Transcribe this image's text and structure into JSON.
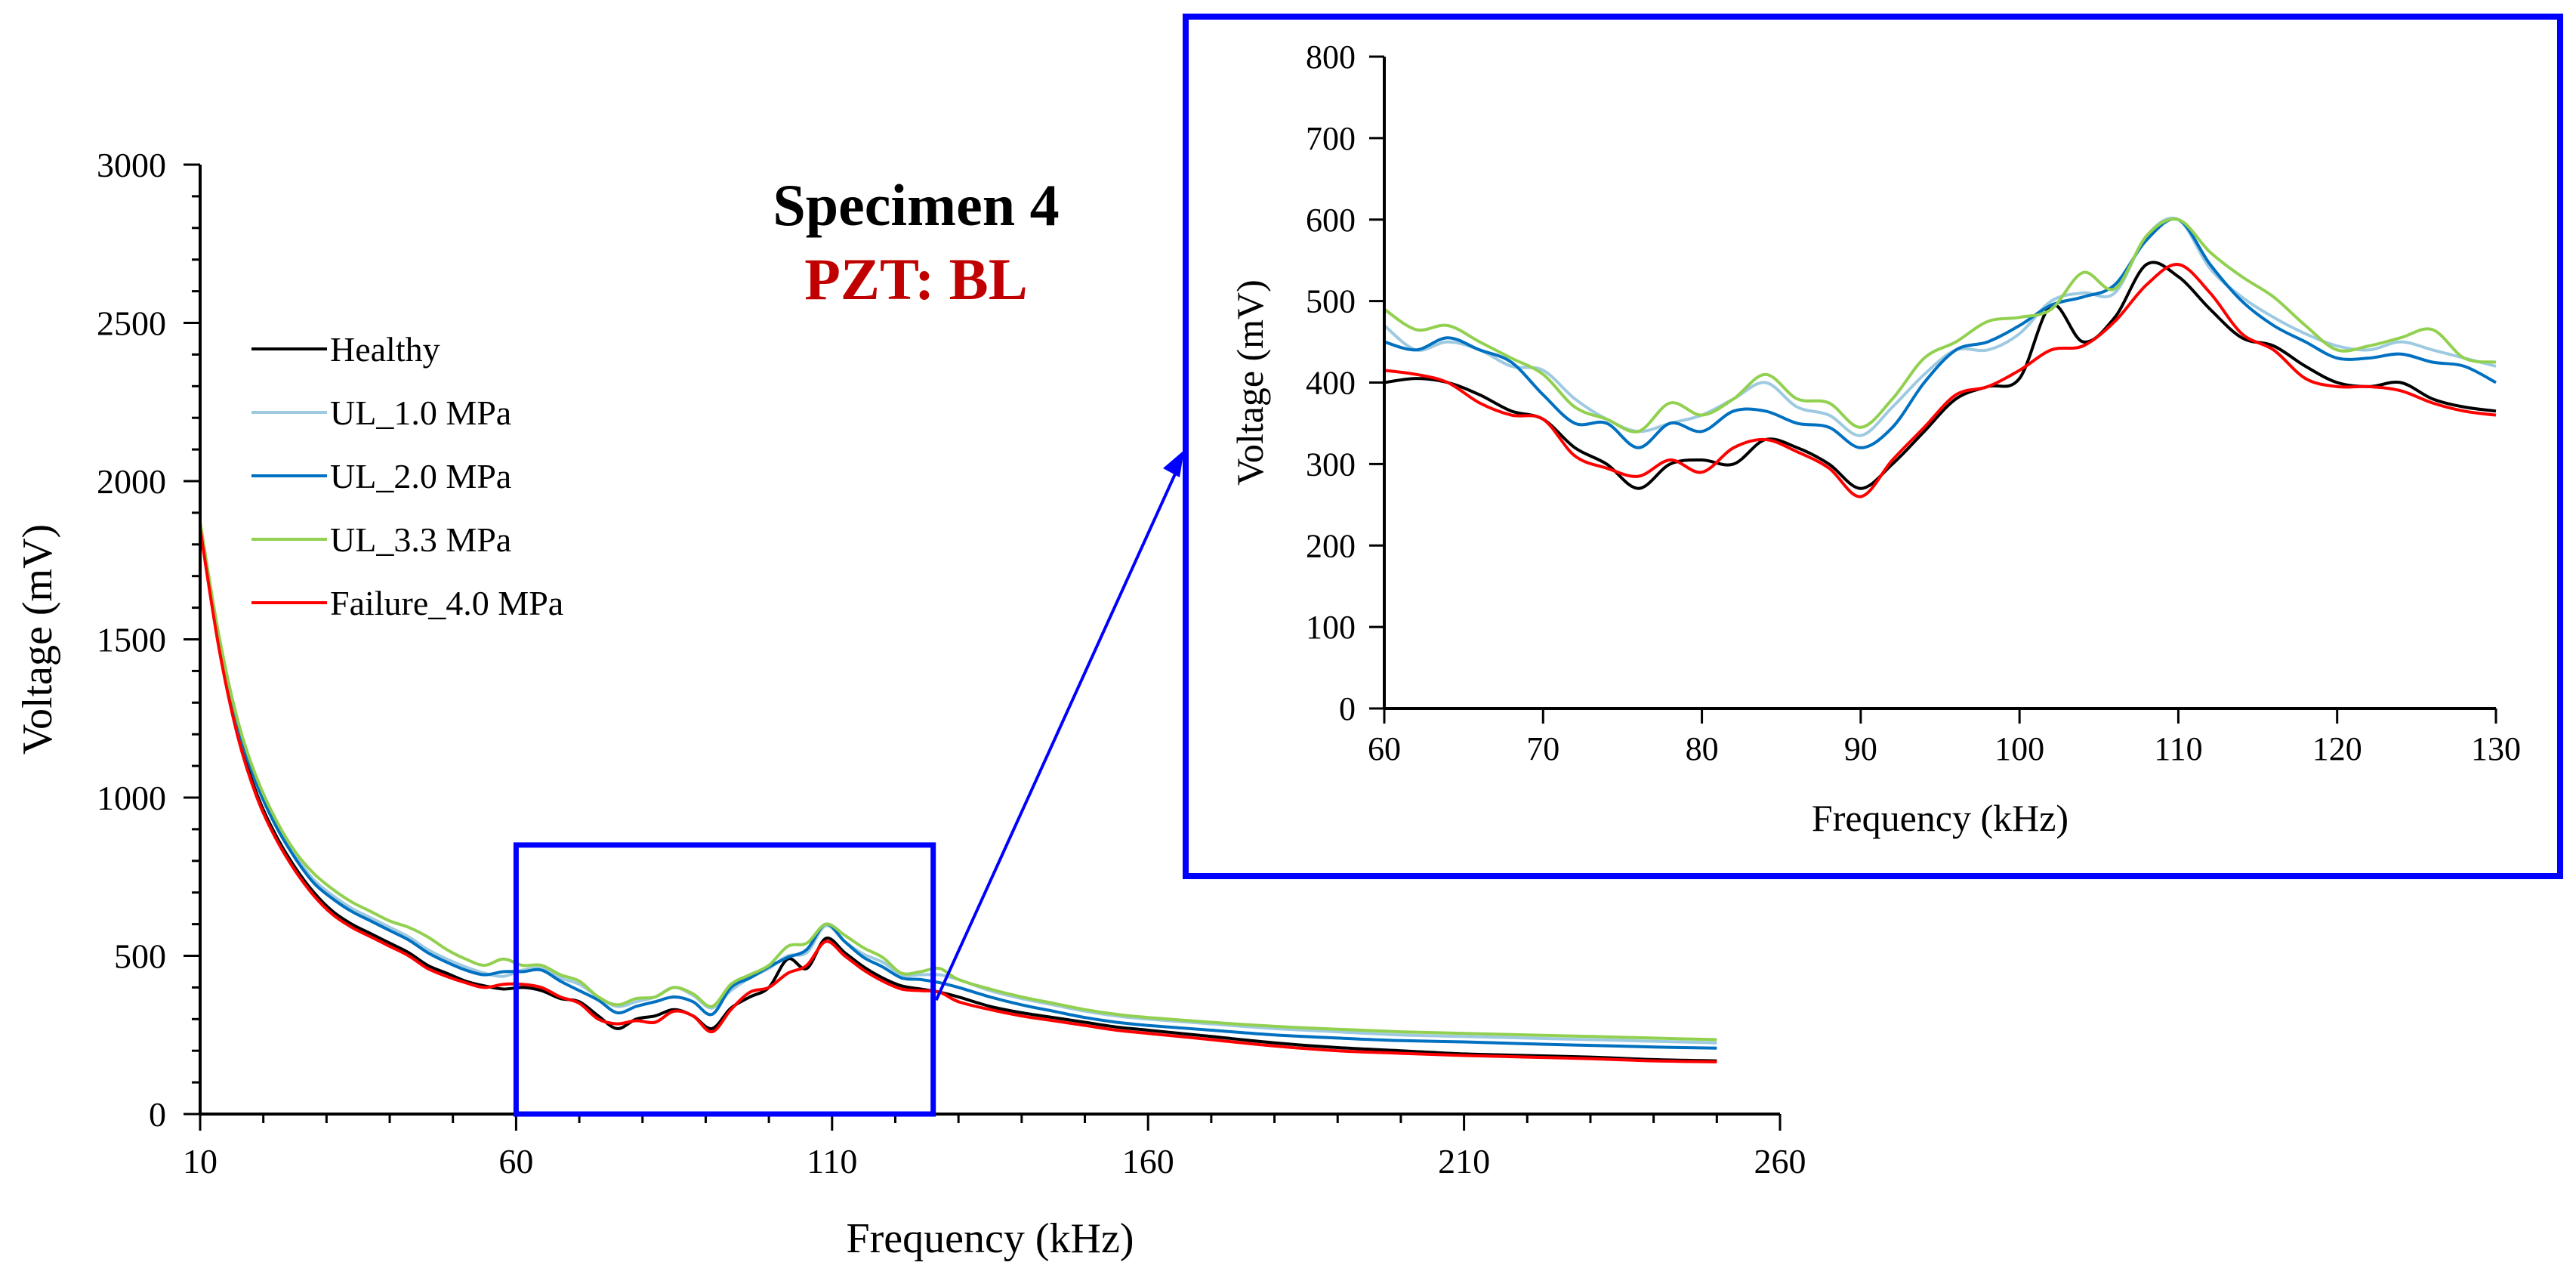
{
  "chart_data": [
    {
      "type": "line",
      "title": "Specimen 4",
      "subtitle": "PZT: BL",
      "xlabel": "Frequency (kHz)",
      "ylabel": "Voltage (mV)",
      "xlim": [
        10,
        260
      ],
      "ylim": [
        0,
        3000
      ],
      "xticks": [
        10,
        60,
        110,
        160,
        210,
        260
      ],
      "yticks": [
        0,
        500,
        1000,
        1500,
        2000,
        2500,
        3000
      ],
      "legend_position": "left",
      "grid": false,
      "zoom_region": {
        "x": [
          60,
          126
        ],
        "y": [
          0,
          850
        ]
      },
      "x": [
        10,
        13,
        16,
        19,
        22,
        25,
        28,
        31,
        34,
        37,
        40,
        43,
        46,
        49,
        52,
        55,
        58,
        61,
        64,
        67,
        70,
        73,
        76,
        79,
        82,
        85,
        88,
        91,
        94,
        97,
        100,
        103,
        106,
        109,
        112,
        115,
        118,
        121,
        124,
        127,
        130,
        135,
        140,
        145,
        150,
        155,
        160,
        170,
        180,
        190,
        200,
        210,
        220,
        230,
        240,
        250
      ],
      "series": [
        {
          "name": "Healthy",
          "color": "#000000",
          "values": [
            1850,
            1480,
            1200,
            1010,
            880,
            780,
            700,
            640,
            600,
            570,
            540,
            510,
            470,
            445,
            420,
            405,
            395,
            400,
            390,
            365,
            355,
            310,
            270,
            300,
            310,
            330,
            310,
            270,
            335,
            370,
            400,
            490,
            460,
            555,
            510,
            465,
            430,
            405,
            395,
            385,
            370,
            340,
            320,
            305,
            290,
            275,
            265,
            245,
            225,
            210,
            200,
            190,
            185,
            180,
            172,
            168
          ]
        },
        {
          "name": "UL_1.0 MPa",
          "color": "#9ecae1",
          "values": [
            1860,
            1500,
            1230,
            1050,
            920,
            820,
            740,
            690,
            650,
            620,
            590,
            560,
            520,
            490,
            465,
            445,
            435,
            455,
            460,
            430,
            410,
            370,
            340,
            355,
            370,
            400,
            375,
            335,
            390,
            430,
            460,
            500,
            510,
            595,
            545,
            505,
            480,
            440,
            440,
            440,
            425,
            390,
            365,
            345,
            325,
            310,
            300,
            285,
            270,
            260,
            250,
            245,
            240,
            235,
            230,
            225
          ]
        },
        {
          "name": "UL_2.0 MPa",
          "color": "#0070c0",
          "values": [
            1860,
            1490,
            1220,
            1040,
            910,
            810,
            730,
            680,
            640,
            610,
            580,
            550,
            510,
            480,
            455,
            440,
            450,
            450,
            455,
            420,
            390,
            360,
            320,
            340,
            355,
            370,
            355,
            315,
            400,
            430,
            465,
            495,
            520,
            600,
            545,
            495,
            465,
            430,
            425,
            415,
            400,
            370,
            345,
            325,
            305,
            290,
            280,
            265,
            250,
            240,
            232,
            228,
            222,
            217,
            212,
            208
          ]
        },
        {
          "name": "UL_3.3 MPa",
          "color": "#92d050",
          "values": [
            1870,
            1510,
            1240,
            1060,
            930,
            830,
            760,
            710,
            670,
            640,
            610,
            590,
            560,
            520,
            490,
            470,
            490,
            470,
            470,
            440,
            420,
            370,
            345,
            365,
            370,
            400,
            380,
            340,
            410,
            440,
            470,
            530,
            540,
            600,
            565,
            525,
            495,
            445,
            450,
            460,
            425,
            395,
            370,
            350,
            330,
            315,
            305,
            290,
            277,
            268,
            260,
            255,
            250,
            245,
            240,
            235
          ]
        },
        {
          "name": "Failure_4.0 MPa",
          "color": "#ff0000",
          "values": [
            1850,
            1470,
            1190,
            1000,
            870,
            770,
            690,
            630,
            590,
            560,
            530,
            500,
            460,
            435,
            415,
            400,
            410,
            410,
            400,
            370,
            350,
            300,
            285,
            295,
            290,
            325,
            310,
            260,
            330,
            385,
            400,
            445,
            470,
            545,
            500,
            455,
            420,
            395,
            390,
            385,
            355,
            330,
            310,
            295,
            280,
            265,
            255,
            235,
            215,
            200,
            192,
            185,
            180,
            175,
            168,
            165
          ]
        }
      ]
    },
    {
      "type": "line",
      "title": "",
      "xlabel": "Frequency (kHz)",
      "ylabel": "Voltage (mV)",
      "xlim": [
        60,
        130
      ],
      "ylim": [
        0,
        800
      ],
      "xticks": [
        60,
        70,
        80,
        90,
        100,
        110,
        120,
        130
      ],
      "yticks": [
        0,
        100,
        200,
        300,
        400,
        500,
        600,
        700,
        800
      ],
      "grid": false,
      "x": [
        60,
        62,
        64,
        66,
        68,
        70,
        72,
        74,
        76,
        78,
        80,
        82,
        84,
        86,
        88,
        90,
        92,
        94,
        96,
        98,
        100,
        102,
        104,
        106,
        108,
        110,
        112,
        114,
        116,
        118,
        120,
        122,
        124,
        126,
        128,
        130
      ],
      "series": [
        {
          "name": "Healthy",
          "color": "#000000",
          "values": [
            400,
            405,
            400,
            385,
            365,
            355,
            320,
            300,
            270,
            300,
            305,
            300,
            330,
            320,
            300,
            270,
            300,
            340,
            380,
            395,
            405,
            495,
            450,
            480,
            545,
            530,
            490,
            455,
            445,
            420,
            400,
            395,
            400,
            380,
            370,
            365
          ]
        },
        {
          "name": "UL_1.0 MPa",
          "color": "#9ecae1",
          "values": [
            470,
            440,
            450,
            440,
            420,
            415,
            380,
            355,
            340,
            350,
            360,
            380,
            400,
            370,
            360,
            335,
            370,
            410,
            440,
            440,
            460,
            500,
            510,
            510,
            580,
            600,
            540,
            505,
            480,
            460,
            445,
            440,
            450,
            440,
            430,
            420
          ]
        },
        {
          "name": "UL_2.0 MPa",
          "color": "#0070c0",
          "values": [
            450,
            440,
            455,
            440,
            425,
            385,
            350,
            350,
            320,
            350,
            340,
            365,
            365,
            350,
            345,
            320,
            345,
            400,
            440,
            450,
            470,
            495,
            505,
            520,
            575,
            600,
            545,
            500,
            470,
            450,
            430,
            430,
            435,
            425,
            420,
            400
          ]
        },
        {
          "name": "UL_3.3 MPa",
          "color": "#92d050",
          "values": [
            490,
            465,
            470,
            450,
            430,
            410,
            370,
            355,
            340,
            375,
            360,
            380,
            410,
            380,
            375,
            345,
            380,
            430,
            450,
            475,
            480,
            490,
            535,
            515,
            580,
            600,
            560,
            530,
            505,
            470,
            440,
            445,
            455,
            465,
            430,
            425
          ]
        },
        {
          "name": "Failure_4.0 MPa",
          "color": "#ff0000",
          "values": [
            415,
            410,
            400,
            375,
            360,
            355,
            310,
            295,
            285,
            305,
            290,
            320,
            330,
            315,
            295,
            260,
            305,
            345,
            385,
            395,
            415,
            440,
            445,
            475,
            520,
            545,
            510,
            460,
            440,
            405,
            395,
            395,
            390,
            375,
            365,
            360
          ]
        }
      ]
    }
  ]
}
